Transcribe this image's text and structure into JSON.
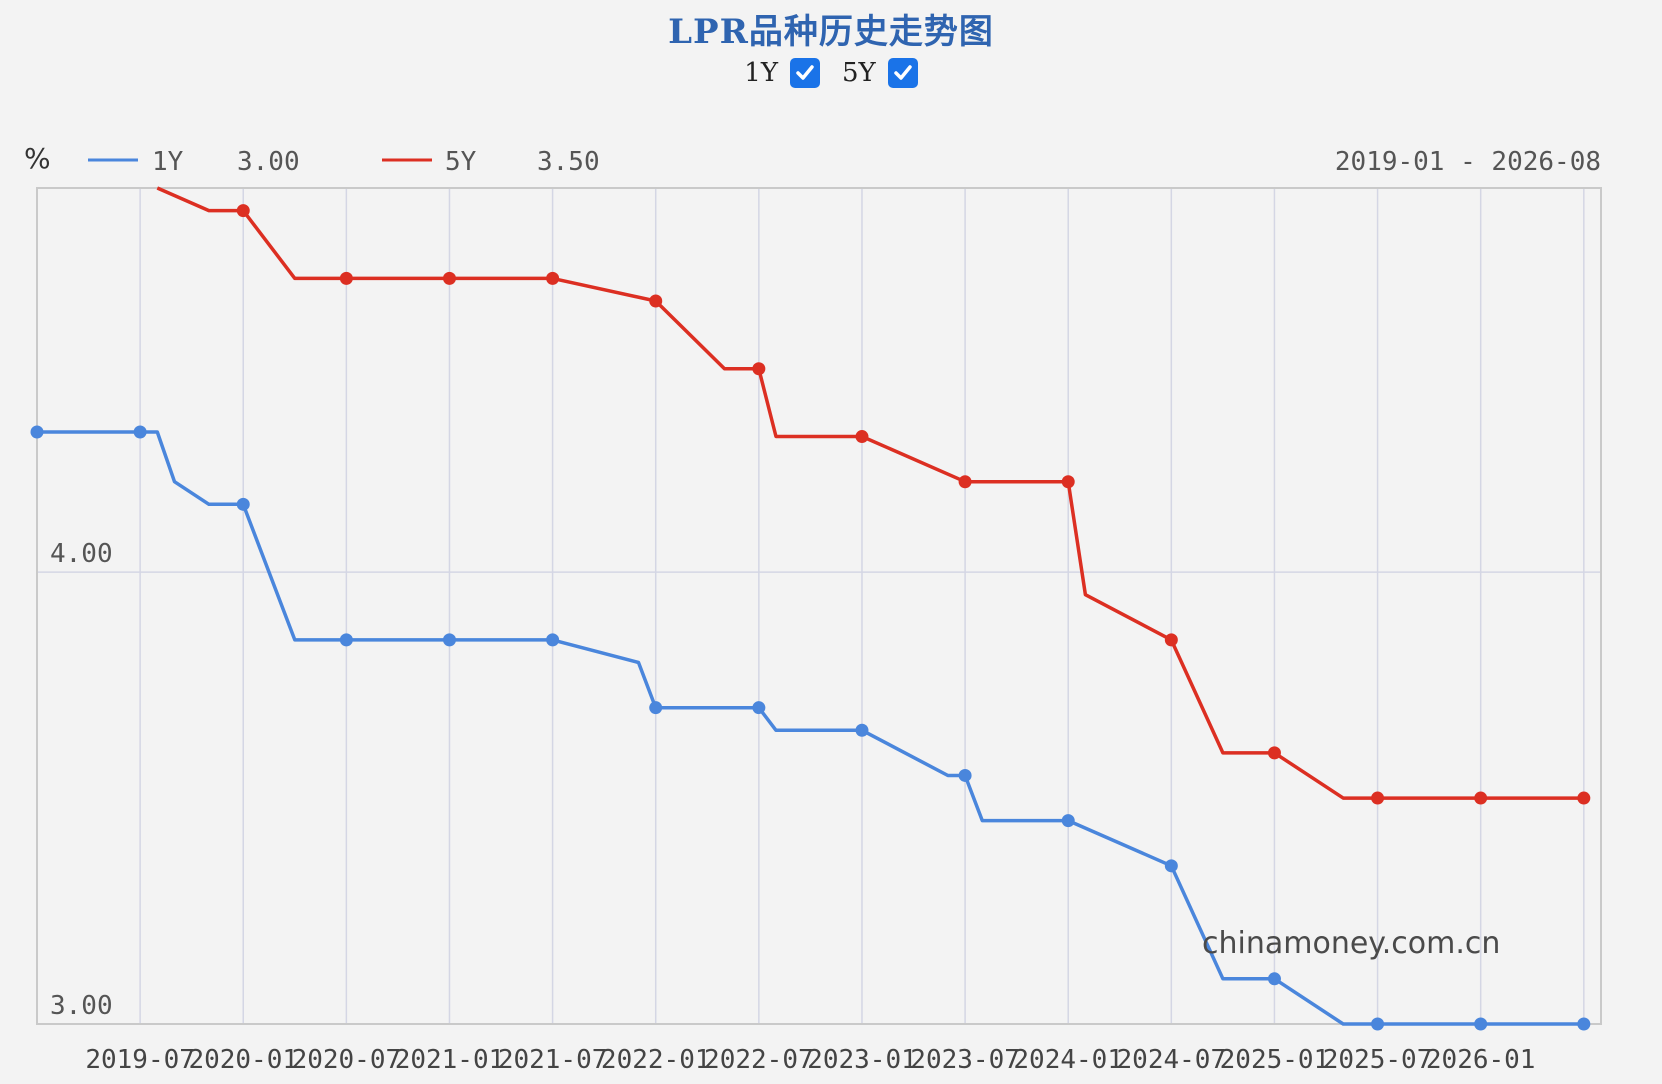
{
  "title": "LPR品种历史走势图",
  "toggles": [
    {
      "label": "1Y",
      "checked": true
    },
    {
      "label": "5Y",
      "checked": true
    }
  ],
  "header": {
    "unit": "%",
    "range": "2019-01 - 2026-08"
  },
  "watermark": "chinamoney.com.cn",
  "colors": {
    "series_1y": "#4a86dc",
    "series_5y": "#dc2f22",
    "checkbox": "#1a73e8",
    "title": "#2f64b0"
  },
  "chart_data": {
    "type": "line",
    "ylim": [
      3.0,
      4.85
    ],
    "y_ticks": [
      {
        "value": 4.0,
        "label": "4.00"
      },
      {
        "value": 3.0,
        "label": "3.00"
      }
    ],
    "x_tick_labels": [
      "2019-07",
      "2020-01",
      "2020-07",
      "2021-01",
      "2021-07",
      "2022-01",
      "2022-07",
      "2023-01",
      "2023-07",
      "2024-01",
      "2024-07",
      "2025-01",
      "2025-07",
      "2026-01"
    ],
    "grid": true,
    "legend": "top-left",
    "series": [
      {
        "name": "1Y",
        "legend_value": "3.00",
        "x": [
          "2019-01",
          "2019-08",
          "2019-09",
          "2019-11",
          "2020-01",
          "2020-02",
          "2020-04",
          "2020-07",
          "2021-01",
          "2021-07",
          "2021-12",
          "2022-01",
          "2022-07",
          "2022-08",
          "2023-01",
          "2023-06",
          "2023-07",
          "2023-08",
          "2024-01",
          "2024-07",
          "2024-10",
          "2025-01",
          "2025-05",
          "2025-07",
          "2026-01",
          "2026-07"
        ],
        "y": [
          4.31,
          4.31,
          4.2,
          4.15,
          4.15,
          4.05,
          3.85,
          3.85,
          3.85,
          3.85,
          3.8,
          3.7,
          3.7,
          3.65,
          3.65,
          3.55,
          3.55,
          3.45,
          3.45,
          3.35,
          3.1,
          3.1,
          3.0,
          3.0,
          3.0,
          3.0
        ],
        "markers": [
          "2019-01",
          "2019-07",
          "2020-01",
          "2020-07",
          "2021-01",
          "2021-07",
          "2022-01",
          "2022-07",
          "2023-01",
          "2023-07",
          "2024-01",
          "2024-07",
          "2025-01",
          "2025-07",
          "2026-01",
          "2026-07"
        ]
      },
      {
        "name": "5Y",
        "legend_value": "3.50",
        "x": [
          "2019-08",
          "2019-11",
          "2020-01",
          "2020-02",
          "2020-04",
          "2020-07",
          "2021-01",
          "2021-07",
          "2022-01",
          "2022-05",
          "2022-07",
          "2022-08",
          "2023-01",
          "2023-07",
          "2023-08",
          "2024-01",
          "2024-02",
          "2024-07",
          "2024-10",
          "2025-01",
          "2025-05",
          "2025-07",
          "2026-01",
          "2026-07"
        ],
        "y": [
          4.85,
          4.8,
          4.8,
          4.75,
          4.65,
          4.65,
          4.65,
          4.65,
          4.6,
          4.45,
          4.45,
          4.3,
          4.3,
          4.2,
          4.2,
          4.2,
          3.95,
          3.85,
          3.6,
          3.6,
          3.5,
          3.5,
          3.5,
          3.5
        ],
        "markers": [
          "2020-01",
          "2020-07",
          "2021-01",
          "2021-07",
          "2022-01",
          "2022-07",
          "2023-01",
          "2023-07",
          "2024-01",
          "2024-07",
          "2025-01",
          "2025-07",
          "2026-01",
          "2026-07"
        ]
      }
    ]
  }
}
